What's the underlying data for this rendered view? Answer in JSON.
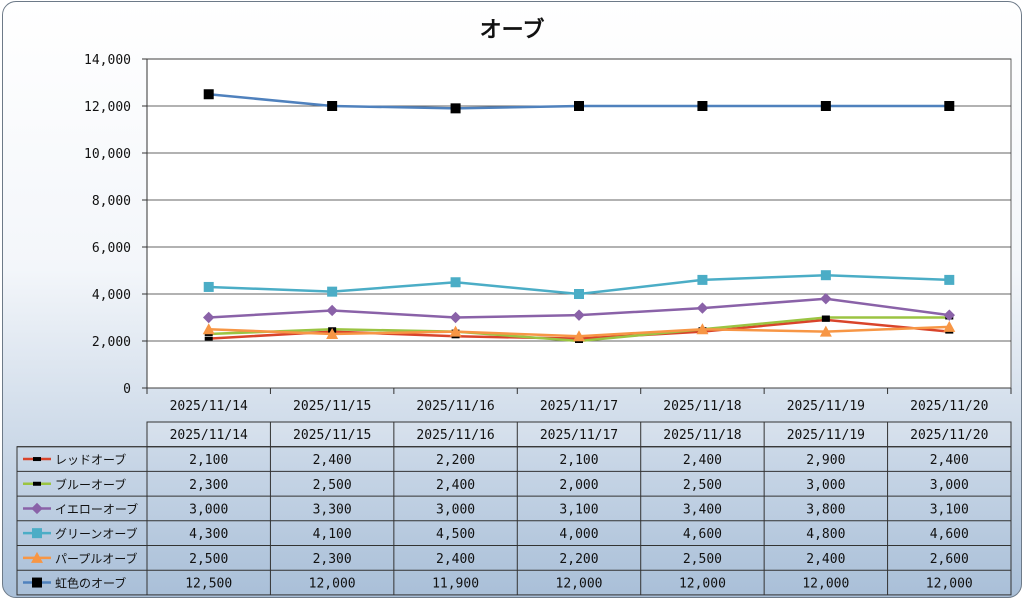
{
  "chart_data": {
    "type": "line",
    "title": "オーブ",
    "xlabel": "",
    "ylabel": "",
    "ylim": [
      0,
      14000
    ],
    "yticks": [
      "0",
      "2,000",
      "4,000",
      "6,000",
      "8,000",
      "10,000",
      "12,000",
      "14,000"
    ],
    "grid": true,
    "legend": "data-table",
    "categories": [
      "2025/11/14",
      "2025/11/15",
      "2025/11/16",
      "2025/11/17",
      "2025/11/18",
      "2025/11/19",
      "2025/11/20"
    ],
    "series": [
      {
        "name": "レッドオーブ",
        "color": "#d9442b",
        "marker": "dash",
        "values": [
          2100,
          2400,
          2200,
          2100,
          2400,
          2900,
          2400
        ],
        "labels": [
          "2,100",
          "2,400",
          "2,200",
          "2,100",
          "2,400",
          "2,900",
          "2,400"
        ]
      },
      {
        "name": "ブルーオーブ",
        "color": "#9bc442",
        "marker": "dash",
        "values": [
          2300,
          2500,
          2400,
          2000,
          2500,
          3000,
          3000
        ],
        "labels": [
          "2,300",
          "2,500",
          "2,400",
          "2,000",
          "2,500",
          "3,000",
          "3,000"
        ]
      },
      {
        "name": "イエローオーブ",
        "color": "#8a62a8",
        "marker": "diamond",
        "values": [
          3000,
          3300,
          3000,
          3100,
          3400,
          3800,
          3100
        ],
        "labels": [
          "3,000",
          "3,300",
          "3,000",
          "3,100",
          "3,400",
          "3,800",
          "3,100"
        ]
      },
      {
        "name": "グリーンオーブ",
        "color": "#4badc6",
        "marker": "square",
        "values": [
          4300,
          4100,
          4500,
          4000,
          4600,
          4800,
          4600
        ],
        "labels": [
          "4,300",
          "4,100",
          "4,500",
          "4,000",
          "4,600",
          "4,800",
          "4,600"
        ]
      },
      {
        "name": "パープルオーブ",
        "color": "#f79645",
        "marker": "triangle",
        "values": [
          2500,
          2300,
          2400,
          2200,
          2500,
          2400,
          2600
        ],
        "labels": [
          "2,500",
          "2,300",
          "2,400",
          "2,200",
          "2,500",
          "2,400",
          "2,600"
        ]
      },
      {
        "name": "虹色のオーブ",
        "color": "#4f81bd",
        "marker": "square-black",
        "values": [
          12500,
          12000,
          11900,
          12000,
          12000,
          12000,
          12000
        ],
        "labels": [
          "12,500",
          "12,000",
          "11,900",
          "12,000",
          "12,000",
          "12,000",
          "12,000"
        ]
      }
    ]
  }
}
